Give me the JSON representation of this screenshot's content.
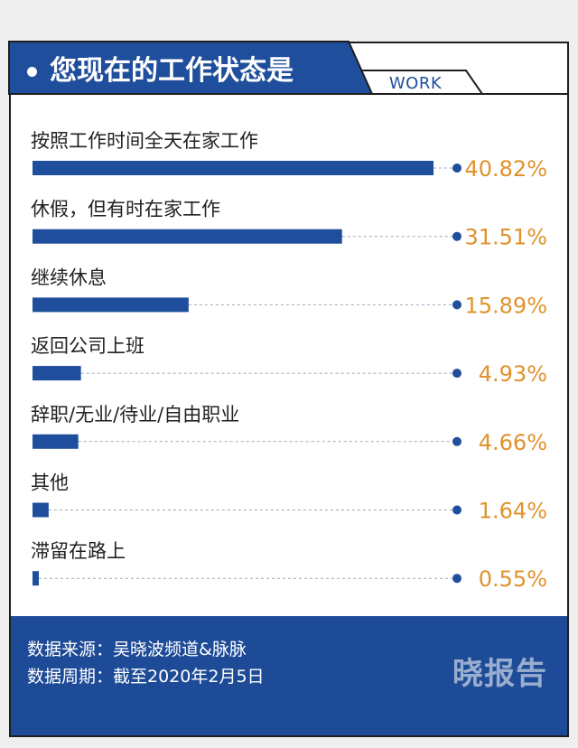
{
  "header": {
    "title": "您现在的工作状态是",
    "tag": "WORK"
  },
  "colors": {
    "bar": "#1f4e9c",
    "value": "#e0922c",
    "footer_bg": "#1e4b97"
  },
  "chart_data": {
    "type": "bar",
    "orientation": "horizontal",
    "title": "您现在的工作状态是",
    "categories": [
      "按照工作时间全天在家工作",
      "休假，但有时在家工作",
      "继续休息",
      "返回公司上班",
      "辞职/无业/待业/自由职业",
      "其他",
      "滞留在路上"
    ],
    "values": [
      40.82,
      31.51,
      15.89,
      4.93,
      4.66,
      1.64,
      0.55
    ],
    "value_labels": [
      "40.82%",
      "31.51%",
      "15.89%",
      "4.93%",
      "4.66%",
      "1.64%",
      "0.55%"
    ],
    "unit": "%",
    "xlim": [
      0,
      40.82
    ],
    "grid": false,
    "legend": "none"
  },
  "footer": {
    "source": "数据来源：吴晓波频道&脉脉",
    "period": "数据周期：截至2020年2月5日",
    "brand": "晓报告"
  }
}
